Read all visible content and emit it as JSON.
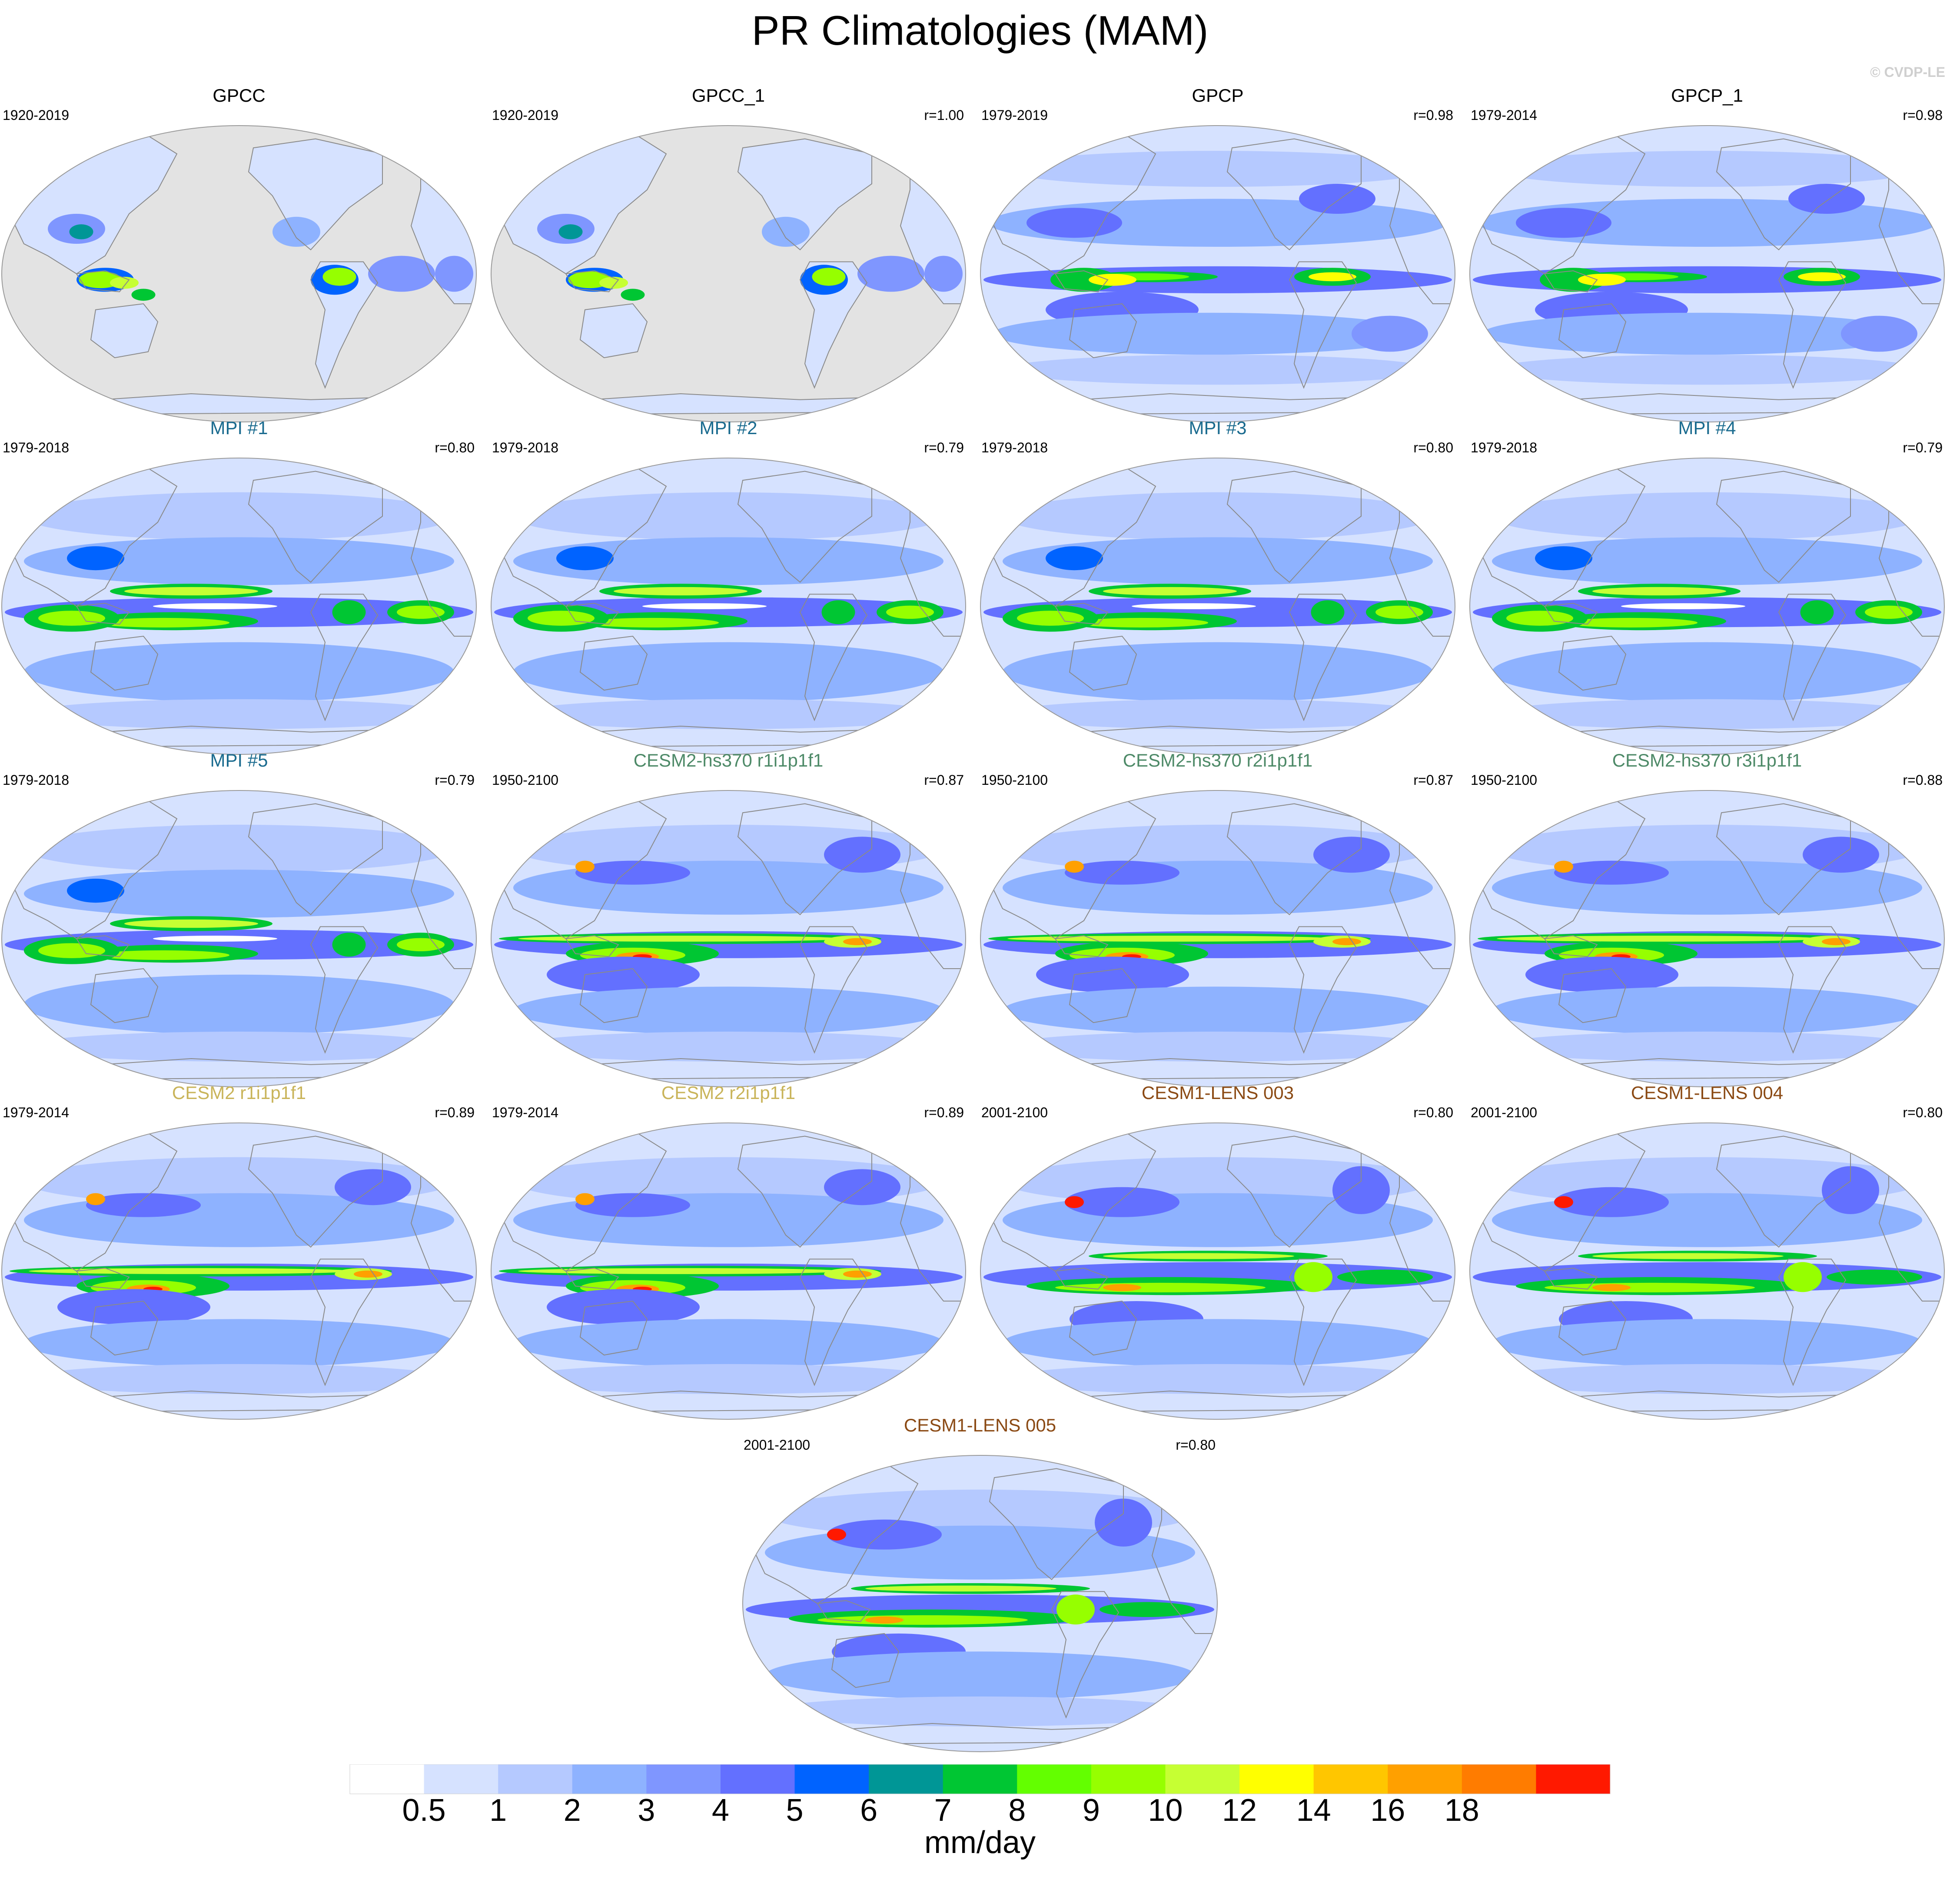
{
  "figure": {
    "title": "PR Climatologies (MAM)",
    "credit": "© CVDP-LE"
  },
  "colors": {
    "levels": [
      "#ffffff",
      "#d6e2ff",
      "#b5c9ff",
      "#8eb2ff",
      "#7f96ff",
      "#6370ff",
      "#0063ff",
      "#009696",
      "#00c633",
      "#63ff00",
      "#96ff00",
      "#c6ff33",
      "#ffff00",
      "#ffc600",
      "#ffa000",
      "#ff7c00",
      "#ff1900"
    ],
    "land_mask": "#e3e3e3",
    "outline": "#8a8a8a",
    "title_obs": "#000000",
    "title_mpi": "#1a6b8f",
    "title_cesm2_hs370": "#4e8a68",
    "title_cesm2": "#c9b45a",
    "title_cesm1_lens": "#8b4a14"
  },
  "chart_data": {
    "type": "heatmap",
    "projection": "Robinson, centered on the Pacific",
    "variable": "precipitation",
    "season": "MAM",
    "colorbar": {
      "tick_labels": [
        "0.5",
        "1",
        "2",
        "3",
        "4",
        "5",
        "6",
        "7",
        "8",
        "9",
        "10",
        "12",
        "14",
        "16",
        "18"
      ],
      "units": "mm/day"
    },
    "panels": [
      {
        "title": "GPCC",
        "group": "obs",
        "period": "1920-2019",
        "corr": "",
        "coverage": "land",
        "pattern": "obs_land"
      },
      {
        "title": "GPCC_1",
        "group": "obs",
        "period": "1920-2019",
        "corr": "r=1.00",
        "coverage": "land",
        "pattern": "obs_land"
      },
      {
        "title": "GPCP",
        "group": "obs",
        "period": "1979-2019",
        "corr": "r=0.98",
        "coverage": "global",
        "pattern": "gpcp"
      },
      {
        "title": "GPCP_1",
        "group": "obs",
        "period": "1979-2014",
        "corr": "r=0.98",
        "coverage": "global",
        "pattern": "gpcp"
      },
      {
        "title": "MPI #1",
        "group": "mpi",
        "period": "1979-2018",
        "corr": "r=0.80",
        "coverage": "global",
        "pattern": "mpi"
      },
      {
        "title": "MPI #2",
        "group": "mpi",
        "period": "1979-2018",
        "corr": "r=0.79",
        "coverage": "global",
        "pattern": "mpi"
      },
      {
        "title": "MPI #3",
        "group": "mpi",
        "period": "1979-2018",
        "corr": "r=0.80",
        "coverage": "global",
        "pattern": "mpi"
      },
      {
        "title": "MPI #4",
        "group": "mpi",
        "period": "1979-2018",
        "corr": "r=0.79",
        "coverage": "global",
        "pattern": "mpi"
      },
      {
        "title": "MPI #5",
        "group": "mpi",
        "period": "1979-2018",
        "corr": "r=0.79",
        "coverage": "global",
        "pattern": "mpi"
      },
      {
        "title": "CESM2-hs370 r1i1p1f1",
        "group": "cesm2_hs370",
        "period": "1950-2100",
        "corr": "r=0.87",
        "coverage": "global",
        "pattern": "cesm"
      },
      {
        "title": "CESM2-hs370 r2i1p1f1",
        "group": "cesm2_hs370",
        "period": "1950-2100",
        "corr": "r=0.87",
        "coverage": "global",
        "pattern": "cesm"
      },
      {
        "title": "CESM2-hs370 r3i1p1f1",
        "group": "cesm2_hs370",
        "period": "1950-2100",
        "corr": "r=0.88",
        "coverage": "global",
        "pattern": "cesm"
      },
      {
        "title": "CESM2 r1i1p1f1",
        "group": "cesm2",
        "period": "1979-2014",
        "corr": "r=0.89",
        "coverage": "global",
        "pattern": "cesm"
      },
      {
        "title": "CESM2 r2i1p1f1",
        "group": "cesm2",
        "period": "1979-2014",
        "corr": "r=0.89",
        "coverage": "global",
        "pattern": "cesm"
      },
      {
        "title": "CESM1-LENS 003",
        "group": "cesm1_lens",
        "period": "2001-2100",
        "corr": "r=0.80",
        "coverage": "global",
        "pattern": "lens"
      },
      {
        "title": "CESM1-LENS 004",
        "group": "cesm1_lens",
        "period": "2001-2100",
        "corr": "r=0.80",
        "coverage": "global",
        "pattern": "lens"
      },
      {
        "title": "CESM1-LENS 005",
        "group": "cesm1_lens",
        "period": "2001-2100",
        "corr": "r=0.80",
        "coverage": "global",
        "pattern": "lens"
      }
    ]
  }
}
